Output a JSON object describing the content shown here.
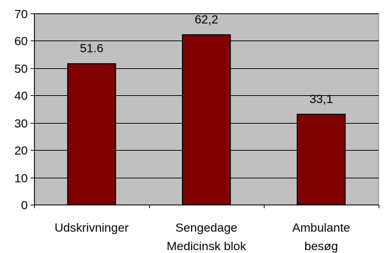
{
  "chart_data": {
    "type": "bar",
    "categories": [
      [
        "Udskrivninger"
      ],
      [
        "Sengedage",
        "Medicinsk blok"
      ],
      [
        "Ambulante",
        "besøg"
      ]
    ],
    "values": [
      51.6,
      62.2,
      33.1
    ],
    "data_labels": [
      "51.6",
      "62,2",
      "33,1"
    ],
    "y_ticks": [
      "0",
      "10",
      "20",
      "30",
      "40",
      "50",
      "60",
      "70"
    ],
    "ylim": [
      0,
      70
    ],
    "grid": true,
    "legend": "none",
    "colors": {
      "plot_background": "#c0c0c0",
      "bar_fill": "#800000",
      "bar_stroke": "#000000",
      "gridline": "#000000"
    }
  }
}
